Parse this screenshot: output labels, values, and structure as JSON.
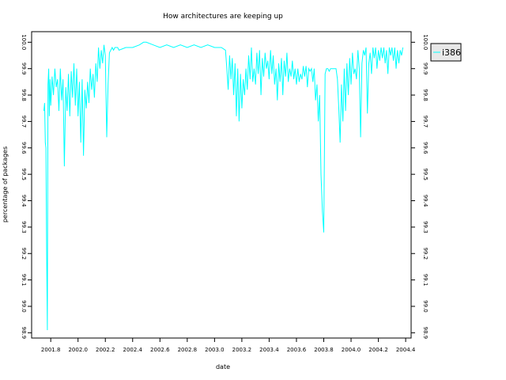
{
  "chart_data": {
    "type": "line",
    "title": "How architectures are keeping up",
    "xlabel": "date",
    "ylabel": "percentage of packages",
    "xlim": [
      2001.66,
      2004.44
    ],
    "ylim": [
      98.88,
      100.04
    ],
    "x_ticks": [
      "2001.8",
      "2002.0",
      "2002.2",
      "2002.4",
      "2002.6",
      "2002.8",
      "2003.0",
      "2003.2",
      "2003.4",
      "2003.6",
      "2003.8",
      "2004.0",
      "2004.2",
      "2004.4"
    ],
    "y_ticks": [
      "98.9",
      "99.0",
      "99.1",
      "99.2",
      "99.3",
      "99.4",
      "99.5",
      "99.6",
      "99.7",
      "99.8",
      "99.9",
      "100.0"
    ],
    "grid": false,
    "legend_position": "right",
    "series": [
      {
        "name": "i386",
        "color": "#00ffff",
        "x": [
          2001.75,
          2001.755,
          2001.76,
          2001.765,
          2001.77,
          2001.775,
          2001.78,
          2001.785,
          2001.79,
          2001.795,
          2001.8,
          2001.81,
          2001.82,
          2001.83,
          2001.84,
          2001.85,
          2001.86,
          2001.87,
          2001.88,
          2001.89,
          2001.9,
          2001.91,
          2001.92,
          2001.93,
          2001.94,
          2001.95,
          2001.96,
          2001.97,
          2001.98,
          2001.99,
          2002.0,
          2002.01,
          2002.02,
          2002.03,
          2002.04,
          2002.05,
          2002.06,
          2002.07,
          2002.08,
          2002.09,
          2002.1,
          2002.11,
          2002.12,
          2002.13,
          2002.14,
          2002.15,
          2002.16,
          2002.17,
          2002.18,
          2002.19,
          2002.2,
          2002.21,
          2002.22,
          2002.23,
          2002.24,
          2002.25,
          2002.26,
          2002.27,
          2002.28,
          2002.29,
          2002.3,
          2002.35,
          2002.4,
          2002.45,
          2002.48,
          2002.5,
          2002.55,
          2002.6,
          2002.65,
          2002.7,
          2002.75,
          2002.8,
          2002.85,
          2002.9,
          2002.95,
          2003.0,
          2003.05,
          2003.08,
          2003.09,
          2003.1,
          2003.11,
          2003.12,
          2003.13,
          2003.14,
          2003.15,
          2003.16,
          2003.17,
          2003.18,
          2003.19,
          2003.2,
          2003.21,
          2003.22,
          2003.23,
          2003.24,
          2003.25,
          2003.26,
          2003.27,
          2003.28,
          2003.29,
          2003.3,
          2003.31,
          2003.32,
          2003.33,
          2003.34,
          2003.35,
          2003.36,
          2003.37,
          2003.38,
          2003.39,
          2003.4,
          2003.41,
          2003.42,
          2003.43,
          2003.44,
          2003.45,
          2003.46,
          2003.47,
          2003.48,
          2003.49,
          2003.5,
          2003.51,
          2003.52,
          2003.53,
          2003.54,
          2003.55,
          2003.56,
          2003.57,
          2003.58,
          2003.59,
          2003.6,
          2003.61,
          2003.62,
          2003.63,
          2003.64,
          2003.65,
          2003.66,
          2003.67,
          2003.68,
          2003.69,
          2003.7,
          2003.71,
          2003.72,
          2003.73,
          2003.74,
          2003.75,
          2003.76,
          2003.77,
          2003.78,
          2003.79,
          2003.8,
          2003.81,
          2003.82,
          2003.83,
          2003.84,
          2003.85,
          2003.86,
          2003.87,
          2003.88,
          2003.89,
          2003.9,
          2003.91,
          2003.92,
          2003.93,
          2003.94,
          2003.95,
          2003.96,
          2003.97,
          2003.98,
          2003.99,
          2004.0,
          2004.01,
          2004.02,
          2004.03,
          2004.04,
          2004.05,
          2004.06,
          2004.07,
          2004.08,
          2004.09,
          2004.1,
          2004.11,
          2004.12,
          2004.13,
          2004.14,
          2004.15,
          2004.16,
          2004.17,
          2004.18,
          2004.19,
          2004.2,
          2004.21,
          2004.22,
          2004.23,
          2004.24,
          2004.25,
          2004.26,
          2004.27,
          2004.28,
          2004.29,
          2004.3,
          2004.31,
          2004.32,
          2004.33,
          2004.34,
          2004.35,
          2004.36,
          2004.37,
          2004.38
        ],
        "y": [
          99.74,
          99.77,
          99.62,
          99.6,
          99.2,
          98.91,
          99.84,
          99.9,
          99.72,
          99.86,
          99.76,
          99.87,
          99.8,
          99.9,
          99.83,
          99.86,
          99.74,
          99.9,
          99.78,
          99.86,
          99.53,
          99.83,
          99.74,
          99.88,
          99.72,
          99.89,
          99.79,
          99.92,
          99.76,
          99.9,
          99.72,
          99.85,
          99.62,
          99.86,
          99.57,
          99.82,
          99.75,
          99.85,
          99.77,
          99.9,
          99.82,
          99.88,
          99.79,
          99.92,
          99.85,
          99.98,
          99.9,
          99.97,
          99.92,
          99.99,
          99.95,
          99.64,
          99.84,
          99.96,
          99.97,
          99.98,
          99.97,
          99.98,
          99.98,
          99.98,
          99.97,
          99.98,
          99.98,
          99.99,
          100.0,
          100.0,
          99.99,
          99.98,
          99.99,
          99.98,
          99.99,
          99.98,
          99.99,
          99.98,
          99.99,
          99.98,
          99.98,
          99.97,
          99.9,
          99.82,
          99.95,
          99.86,
          99.94,
          99.8,
          99.92,
          99.72,
          99.9,
          99.7,
          99.88,
          99.75,
          99.86,
          99.8,
          99.9,
          99.82,
          99.95,
          99.86,
          99.98,
          99.85,
          99.9,
          99.84,
          99.96,
          99.88,
          99.97,
          99.8,
          99.94,
          99.87,
          99.96,
          99.9,
          99.93,
          99.86,
          99.97,
          99.88,
          99.95,
          99.84,
          99.9,
          99.78,
          99.92,
          99.85,
          99.94,
          99.8,
          99.93,
          99.87,
          99.96,
          99.85,
          99.9,
          99.87,
          99.93,
          99.86,
          99.9,
          99.84,
          99.9,
          99.85,
          99.88,
          99.86,
          99.91,
          99.87,
          99.91,
          99.83,
          99.9,
          99.89,
          99.9,
          99.85,
          99.9,
          99.78,
          99.84,
          99.7,
          99.8,
          99.5,
          99.36,
          99.28,
          99.88,
          99.9,
          99.9,
          99.89,
          99.9,
          99.9,
          99.9,
          99.9,
          99.9,
          99.86,
          99.75,
          99.62,
          99.84,
          99.7,
          99.9,
          99.74,
          99.92,
          99.8,
          99.94,
          99.84,
          99.96,
          99.88,
          99.9,
          99.86,
          99.97,
          99.9,
          99.64,
          99.92,
          99.97,
          99.95,
          99.98,
          99.73,
          99.92,
          99.96,
          99.88,
          99.98,
          99.94,
          99.98,
          99.9,
          99.97,
          99.93,
          99.98,
          99.94,
          99.98,
          99.92,
          99.97,
          99.88,
          99.98,
          99.95,
          99.98,
          99.93,
          99.98,
          99.9,
          99.97,
          99.92,
          99.97,
          99.95,
          99.98
        ]
      }
    ]
  }
}
